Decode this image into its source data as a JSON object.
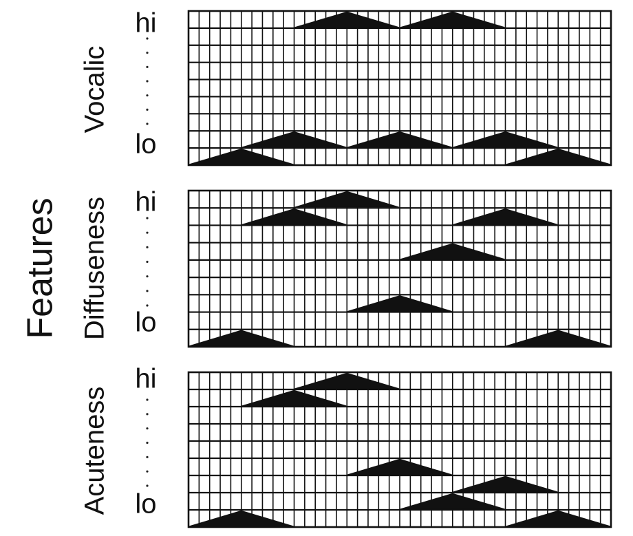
{
  "figure": {
    "title": "Features"
  },
  "panels": [
    {
      "label": "Vocalic",
      "top_tick": "hi",
      "bottom_tick": "lo",
      "rows": 9,
      "columns": 40,
      "triangles": [
        {
          "row": 0,
          "start": 11,
          "end": 20
        },
        {
          "row": 0,
          "start": 21,
          "end": 30
        },
        {
          "row": 7,
          "start": 6,
          "end": 15
        },
        {
          "row": 7,
          "start": 16,
          "end": 25
        },
        {
          "row": 7,
          "start": 26,
          "end": 35
        },
        {
          "row": 8,
          "start": 1,
          "end": 10
        },
        {
          "row": 8,
          "start": 31,
          "end": 40
        }
      ]
    },
    {
      "label": "Diffuseness",
      "top_tick": "hi",
      "bottom_tick": "lo",
      "rows": 9,
      "columns": 40,
      "triangles": [
        {
          "row": 0,
          "start": 11,
          "end": 20
        },
        {
          "row": 1,
          "start": 6,
          "end": 15
        },
        {
          "row": 1,
          "start": 26,
          "end": 35
        },
        {
          "row": 3,
          "start": 21,
          "end": 30
        },
        {
          "row": 6,
          "start": 16,
          "end": 25
        },
        {
          "row": 8,
          "start": 1,
          "end": 10
        },
        {
          "row": 8,
          "start": 31,
          "end": 40
        }
      ]
    },
    {
      "label": "Acuteness",
      "top_tick": "hi",
      "bottom_tick": "lo",
      "rows": 9,
      "columns": 40,
      "triangles": [
        {
          "row": 0,
          "start": 11,
          "end": 20
        },
        {
          "row": 1,
          "start": 6,
          "end": 15
        },
        {
          "row": 5,
          "start": 16,
          "end": 25
        },
        {
          "row": 6,
          "start": 26,
          "end": 35
        },
        {
          "row": 7,
          "start": 21,
          "end": 30
        },
        {
          "row": 8,
          "start": 1,
          "end": 10
        },
        {
          "row": 8,
          "start": 31,
          "end": 40
        }
      ]
    }
  ]
}
